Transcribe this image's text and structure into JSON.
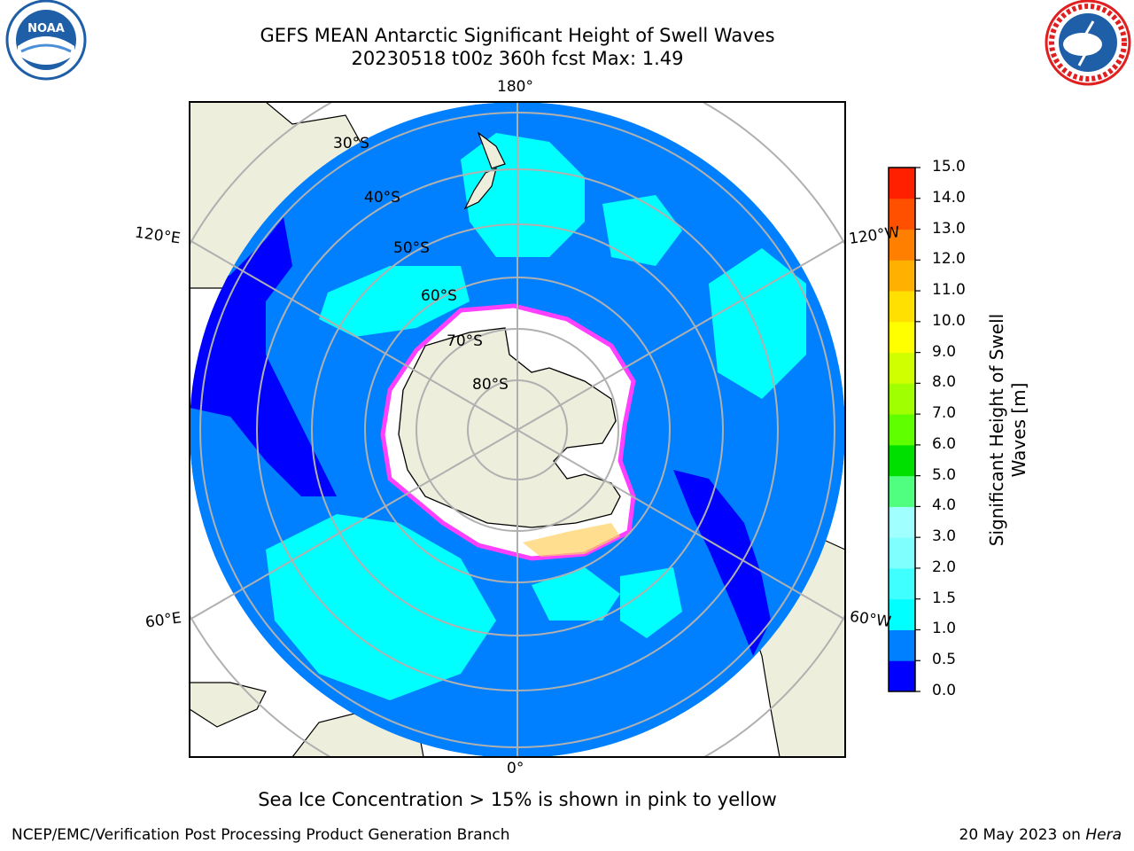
{
  "header": {
    "title_line1": "GEFS MEAN Antarctic Significant Height of Swell Waves",
    "title_line2": "20230518 t00z 360h fcst   Max: 1.49"
  },
  "logos": {
    "left": {
      "text": "NOAA",
      "icon": "noaa-logo-icon",
      "color": "#1f5fa8"
    },
    "right": {
      "text": "NATIONAL WEATHER SERVICE",
      "icon": "nws-logo-icon",
      "color": "#e02020"
    }
  },
  "map": {
    "lat_labels": [
      "30°S",
      "40°S",
      "50°S",
      "60°S",
      "70°S",
      "80°S"
    ],
    "lon_labels": {
      "top": "180°",
      "bottom": "0°",
      "upper_left": "120°E",
      "upper_right": "120°W",
      "lower_left": "60°E",
      "lower_right": "60°W"
    },
    "colors": {
      "ocean": "#0080ff",
      "ocean_low": "#0000ff",
      "ocean_mid": "#00ffff",
      "land": "#eeeedd",
      "ice": "#ffffff",
      "ice_edge": "#ff40ff",
      "grid": "#b0b0b0"
    }
  },
  "colorbar": {
    "title": "Significant Height of Swell Waves [m]",
    "ticks": [
      "0.0",
      "0.5",
      "1.0",
      "1.5",
      "2.0",
      "3.0",
      "4.0",
      "5.0",
      "6.0",
      "7.0",
      "8.0",
      "9.0",
      "10.0",
      "11.0",
      "12.0",
      "13.0",
      "14.0",
      "15.0"
    ],
    "colors": [
      "#0000ff",
      "#0080ff",
      "#00ffff",
      "#40ffff",
      "#80ffff",
      "#a0ffff",
      "#50ff80",
      "#00e000",
      "#60ff00",
      "#a0ff00",
      "#d0ff00",
      "#ffff00",
      "#ffe000",
      "#ffb000",
      "#ff8000",
      "#ff5000",
      "#ff2000",
      "#ff0000"
    ]
  },
  "notes": {
    "sea_ice": "Sea Ice Concentration > 15% is shown in pink to yellow"
  },
  "footer": {
    "left": "NCEP/EMC/Verification Post Processing Product Generation Branch",
    "right_date": "20 May 2023 on ",
    "right_host": "Hera"
  }
}
